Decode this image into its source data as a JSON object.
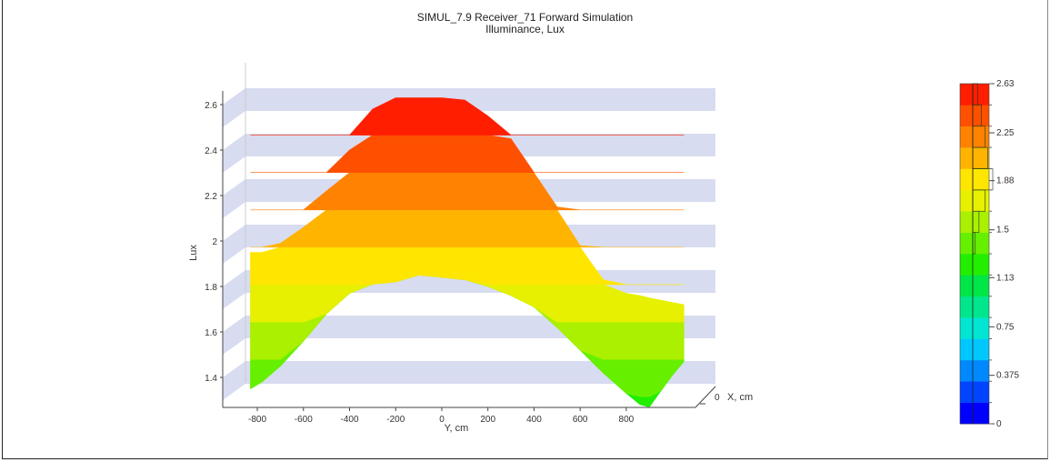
{
  "chart_data": {
    "type": "area",
    "title": "SIMUL_7.9 Receiver_71 Forward Simulation",
    "subtitle": "Illuminance, Lux",
    "xlabel": "Y, cm",
    "ylabel": "Lux",
    "depth_label": "X, cm",
    "depth_tick": "0",
    "x_ticks": [
      "-800",
      "-600",
      "-400",
      "-200",
      "0",
      "200",
      "400",
      "600",
      "800"
    ],
    "y_ticks": [
      "1.4",
      "1.6",
      "1.8",
      "2",
      "2.2",
      "2.4",
      "2.6"
    ],
    "xlim": [
      -950,
      1100
    ],
    "ylim": [
      1.3,
      2.7
    ],
    "grid": "horizontal bands",
    "front_profile": {
      "x": [
        -830,
        -780,
        -700,
        -600,
        -500,
        -400,
        -300,
        -200,
        -100,
        0,
        100,
        200,
        300,
        400,
        500,
        600,
        700,
        800,
        860,
        900,
        950,
        1000,
        1050
      ],
      "y": [
        1.35,
        1.38,
        1.45,
        1.56,
        1.68,
        1.77,
        1.81,
        1.82,
        1.85,
        1.84,
        1.83,
        1.8,
        1.76,
        1.71,
        1.62,
        1.52,
        1.42,
        1.33,
        1.28,
        1.27,
        1.34,
        1.41,
        1.47
      ]
    },
    "top_profile": {
      "x": [
        -830,
        -780,
        -700,
        -600,
        -500,
        -400,
        -300,
        -200,
        -100,
        0,
        100,
        200,
        300,
        400,
        500,
        600,
        700,
        800,
        860,
        900,
        950,
        1000,
        1050
      ],
      "y": [
        1.95,
        1.95,
        1.99,
        2.06,
        2.22,
        2.4,
        2.58,
        2.65,
        2.69,
        2.67,
        2.62,
        2.55,
        2.45,
        2.3,
        2.15,
        1.98,
        1.83,
        1.77,
        1.76,
        1.75,
        1.74,
        1.73,
        1.72
      ]
    },
    "colorbar": {
      "min": 0,
      "max": 2.63,
      "tick_labels": [
        "2.63",
        "2.25",
        "1.88",
        "1.5",
        "1.13",
        "0.75",
        "0.375",
        "0"
      ],
      "tick_values": [
        2.63,
        2.25,
        1.88,
        1.5,
        1.13,
        0.75,
        0.375,
        0
      ],
      "colors": [
        "#0000ff",
        "#0044ff",
        "#0088ff",
        "#00c8ff",
        "#00e6d2",
        "#00e68c",
        "#00e646",
        "#22ee00",
        "#66f000",
        "#aaf000",
        "#e6f000",
        "#ffe600",
        "#ffb400",
        "#ff8200",
        "#ff5000",
        "#ff1e00"
      ],
      "histogram": [
        0,
        0,
        0,
        0,
        0,
        0,
        0,
        0,
        0.02,
        0.05,
        0.1,
        0.16,
        0.12,
        0.1,
        0.07,
        0.04
      ]
    }
  }
}
